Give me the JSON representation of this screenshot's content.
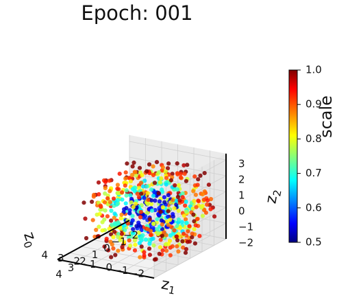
{
  "chart_data": {
    "type": "scatter",
    "subtype": "3d-scatter",
    "title": "Epoch: 001",
    "axes": {
      "z0": {
        "label": "z0",
        "label_sub": "0",
        "range": [
          -2,
          4
        ],
        "ticks": [
          4,
          3,
          2,
          1,
          0,
          -1,
          -2
        ]
      },
      "z1": {
        "label": "z1",
        "label_sub": "1",
        "range": [
          -2,
          4
        ],
        "ticks": [
          4,
          3,
          2,
          1,
          0,
          -1,
          -2
        ]
      },
      "z2": {
        "label": "z2",
        "label_sub": "2",
        "range": [
          -2,
          3
        ],
        "ticks": [
          3,
          2,
          1,
          0,
          -1,
          -2
        ]
      }
    },
    "grid": true,
    "colorbar": {
      "label": "scale",
      "range": [
        0.5,
        1.0
      ],
      "ticks": [
        "0.5",
        "0.6",
        "0.7",
        "0.8",
        "0.9",
        "1.0"
      ],
      "colormap": "jet"
    },
    "distribution": {
      "shape": "concentric spherical shells colored by scale",
      "shells": [
        {
          "scale": 0.55,
          "radius": 1.3
        },
        {
          "scale": 0.7,
          "radius": 2.0
        },
        {
          "scale": 0.8,
          "radius": 2.5
        },
        {
          "scale": 0.9,
          "radius": 2.95
        },
        {
          "scale": 1.0,
          "radius": 3.3
        }
      ]
    }
  }
}
